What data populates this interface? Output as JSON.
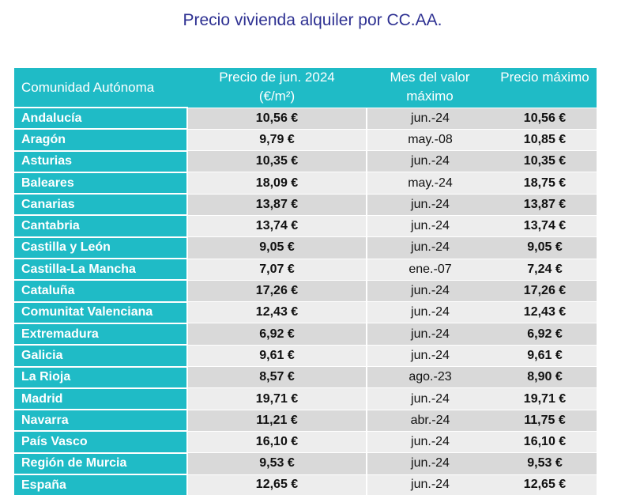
{
  "title": "Precio vivienda alquiler por CC.AA.",
  "colors": {
    "header": "#1fbbc6",
    "title": "#2e3192",
    "row_dark": "#d9d9d9",
    "row_light": "#ededed"
  },
  "headers": {
    "community": "Comunidad Autónoma",
    "price_line1": "Precio de jun. 2024",
    "price_line2": "(€/m²)",
    "month_line1": "Mes del valor",
    "month_line2": "máximo",
    "max": "Precio máximo"
  },
  "rows": [
    {
      "name": "Andalucía",
      "price": "10,56 €",
      "month": "jun.-24",
      "max": "10,56 €"
    },
    {
      "name": "Aragón",
      "price": "9,79 €",
      "month": "may.-08",
      "max": "10,85 €"
    },
    {
      "name": "Asturias",
      "price": "10,35 €",
      "month": "jun.-24",
      "max": "10,35 €"
    },
    {
      "name": "Baleares",
      "price": "18,09 €",
      "month": "may.-24",
      "max": "18,75 €"
    },
    {
      "name": "Canarias",
      "price": "13,87 €",
      "month": "jun.-24",
      "max": "13,87 €"
    },
    {
      "name": "Cantabria",
      "price": "13,74 €",
      "month": "jun.-24",
      "max": "13,74 €"
    },
    {
      "name": "Castilla y León",
      "price": "9,05 €",
      "month": "jun.-24",
      "max": "9,05 €"
    },
    {
      "name": "Castilla-La Mancha",
      "price": "7,07 €",
      "month": "ene.-07",
      "max": "7,24 €"
    },
    {
      "name": "Cataluña",
      "price": "17,26 €",
      "month": "jun.-24",
      "max": "17,26 €"
    },
    {
      "name": "Comunitat Valenciana",
      "price": "12,43 €",
      "month": "jun.-24",
      "max": "12,43 €"
    },
    {
      "name": "Extremadura",
      "price": "6,92 €",
      "month": "jun.-24",
      "max": "6,92 €"
    },
    {
      "name": "Galicia",
      "price": "9,61 €",
      "month": "jun.-24",
      "max": "9,61 €"
    },
    {
      "name": "La Rioja",
      "price": "8,57 €",
      "month": "ago.-23",
      "max": "8,90 €"
    },
    {
      "name": "Madrid",
      "price": "19,71 €",
      "month": "jun.-24",
      "max": "19,71 €"
    },
    {
      "name": "Navarra",
      "price": "11,21 €",
      "month": "abr.-24",
      "max": "11,75 €"
    },
    {
      "name": "País Vasco",
      "price": "16,10 €",
      "month": "jun.-24",
      "max": "16,10 €"
    },
    {
      "name": "Región de Murcia",
      "price": "9,53 €",
      "month": "jun.-24",
      "max": "9,53 €"
    },
    {
      "name": "España",
      "price": "12,65 €",
      "month": "jun.-24",
      "max": "12,65 €"
    }
  ]
}
